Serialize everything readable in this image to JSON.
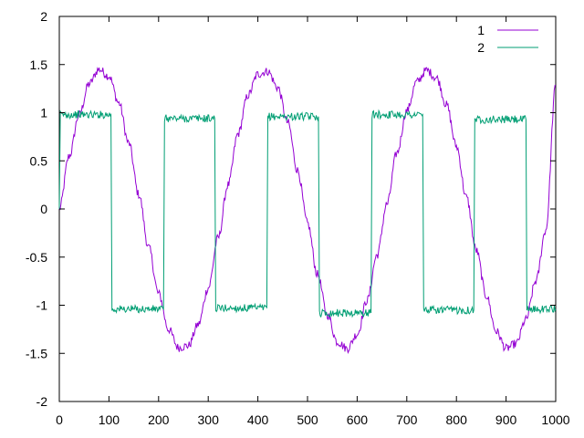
{
  "chart_data": {
    "type": "line",
    "title": "",
    "xlabel": "",
    "ylabel": "",
    "xlim": [
      0,
      1000
    ],
    "ylim": [
      -2,
      2
    ],
    "x_ticks": [
      "0",
      "100",
      "200",
      "300",
      "400",
      "500",
      "600",
      "700",
      "800",
      "900",
      "1000"
    ],
    "y_ticks": [
      "2",
      "1.5",
      "1",
      "0.5",
      "0",
      "-0.5",
      "-1",
      "-1.5",
      "-2"
    ],
    "grid": false,
    "legend_position": "top-right",
    "series": [
      {
        "name": "1",
        "color": "#9400d3",
        "description": "noisy sine wave, amplitude about 1.45, period about 317",
        "x": [
          0,
          20,
          40,
          60,
          80,
          100,
          120,
          140,
          160,
          180,
          200,
          220,
          240,
          260,
          280,
          300,
          320,
          340,
          360,
          380,
          400,
          420,
          440,
          460,
          480,
          500,
          520,
          540,
          560,
          580,
          600,
          620,
          640,
          660,
          680,
          700,
          720,
          740,
          760,
          780,
          800,
          820,
          840,
          860,
          880,
          900,
          920,
          940,
          960,
          980,
          1000
        ],
        "values": [
          0.0,
          0.55,
          0.98,
          1.3,
          1.45,
          1.38,
          1.1,
          0.68,
          0.15,
          -0.4,
          -0.88,
          -1.25,
          -1.44,
          -1.42,
          -1.2,
          -0.82,
          -0.3,
          0.25,
          0.78,
          1.18,
          1.4,
          1.43,
          1.26,
          0.9,
          0.4,
          -0.15,
          -0.68,
          -1.1,
          -1.38,
          -1.45,
          -1.3,
          -0.95,
          -0.48,
          0.05,
          0.58,
          1.02,
          1.32,
          1.44,
          1.36,
          1.08,
          0.65,
          0.12,
          -0.43,
          -0.9,
          -1.27,
          -1.45,
          -1.4,
          -1.15,
          -0.75,
          -0.22,
          1.28
        ]
      },
      {
        "name": "2",
        "color": "#009e73",
        "description": "noisy square wave alternating between about +0.95 and -1.05",
        "x": [
          0,
          2,
          104,
          106,
          210,
          212,
          313,
          315,
          418,
          420,
          522,
          524,
          628,
          630,
          732,
          734,
          835,
          837,
          940,
          942,
          1000
        ],
        "values": [
          0.0,
          0.98,
          0.98,
          -1.04,
          -1.04,
          0.94,
          0.94,
          -1.03,
          -1.03,
          0.96,
          0.96,
          -1.08,
          -1.08,
          0.98,
          0.98,
          -1.05,
          -1.05,
          0.93,
          0.93,
          -1.04,
          -1.04
        ]
      }
    ]
  }
}
